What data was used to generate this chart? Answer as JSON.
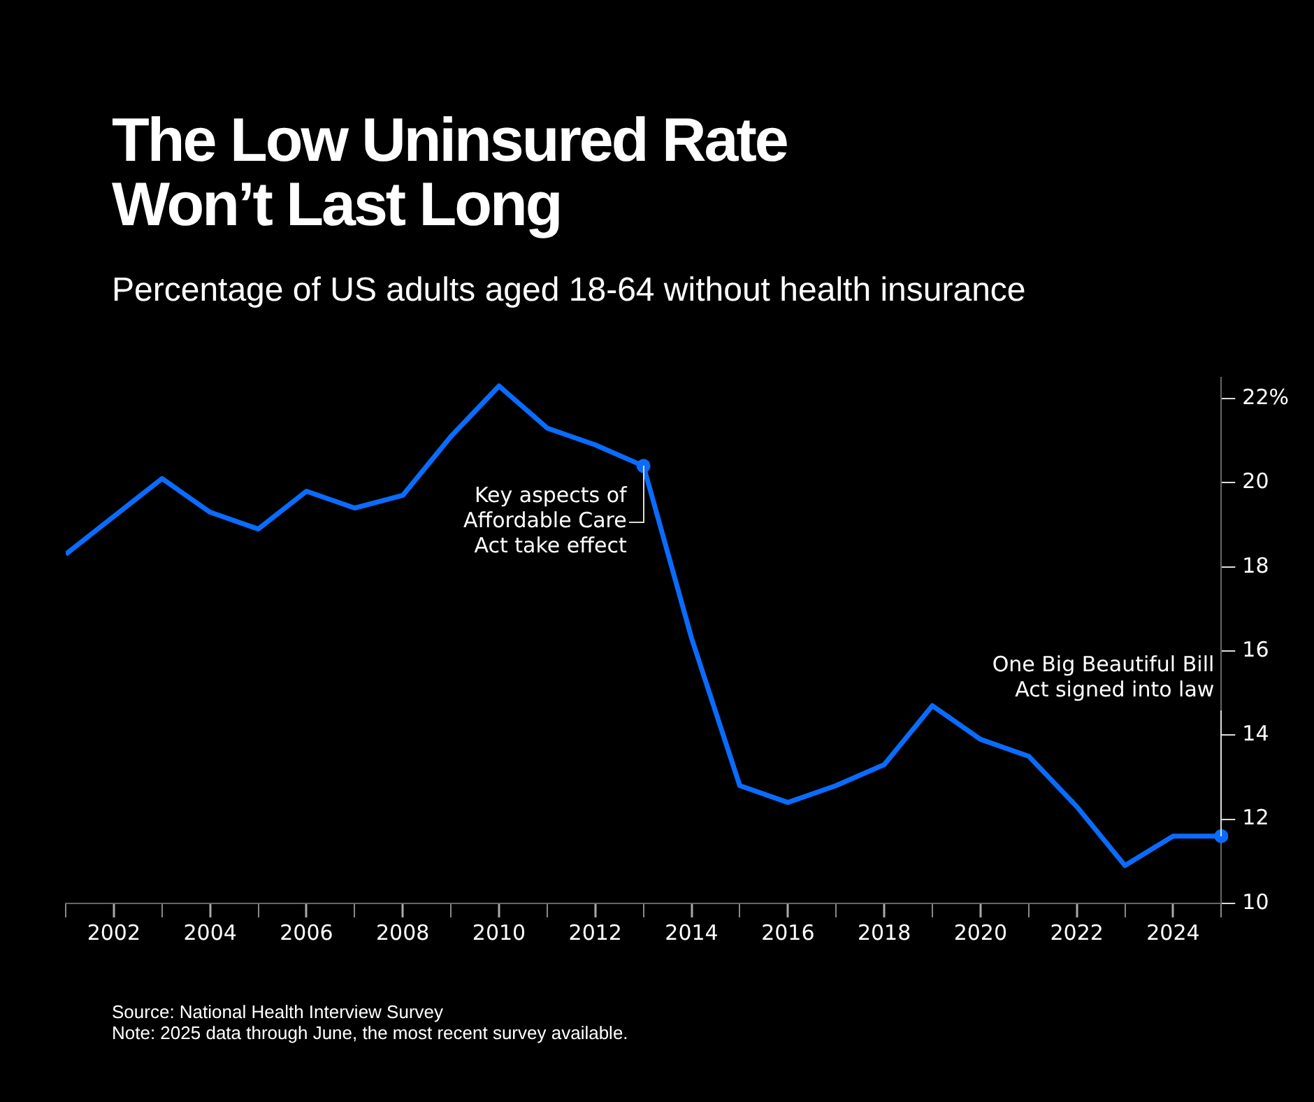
{
  "chart_data": {
    "type": "line",
    "title": "The Low Uninsured Rate\nWon’t Last Long",
    "subtitle": "Percentage of US adults aged 18-64 without health insurance",
    "x": [
      2001,
      2002,
      2003,
      2004,
      2005,
      2006,
      2007,
      2008,
      2009,
      2010,
      2011,
      2012,
      2013,
      2014,
      2015,
      2016,
      2017,
      2018,
      2019,
      2020,
      2021,
      2022,
      2023,
      2024,
      2025
    ],
    "series": [
      {
        "color": "#0a6cff",
        "values": [
          18.3,
          19.2,
          20.1,
          19.3,
          18.9,
          19.8,
          19.4,
          19.7,
          21.1,
          22.3,
          21.3,
          20.9,
          20.4,
          16.3,
          12.8,
          12.4,
          12.8,
          13.3,
          14.7,
          13.9,
          13.5,
          12.3,
          10.9,
          11.6,
          11.6
        ]
      }
    ],
    "xlim": [
      2001,
      2025
    ],
    "xticks": [
      {
        "value": 2001,
        "label": null
      },
      2002,
      {
        "value": 2003,
        "label": null
      },
      2004,
      {
        "value": 2005,
        "label": null
      },
      2006,
      {
        "value": 2007,
        "label": null
      },
      2008,
      {
        "value": 2009,
        "label": null
      },
      2010,
      {
        "value": 2011,
        "label": null
      },
      2012,
      {
        "value": 2013,
        "label": null
      },
      2014,
      {
        "value": 2015,
        "label": null
      },
      2016,
      {
        "value": 2017,
        "label": null
      },
      2018,
      {
        "value": 2019,
        "label": null
      },
      2020,
      {
        "value": 2021,
        "label": null
      },
      2022,
      {
        "value": 2023,
        "label": null
      },
      2024,
      {
        "value": 2025,
        "label": null
      }
    ],
    "ylim": [
      10,
      22.5
    ],
    "yticks": [
      10,
      12,
      14,
      16,
      18,
      20,
      {
        "value": 22,
        "label": "22%"
      }
    ],
    "grid": false,
    "legend": false,
    "marker": "none",
    "line_style": "solid",
    "annotations": [
      {
        "text": "Key aspects of\nAffordable Care\nAct take effect",
        "x": 2013,
        "y": 20.4
      },
      {
        "text": "One Big Beautiful Bill\nAct signed into law",
        "x": 2025,
        "y": 11.6
      },
      "Source: National Health Interview Survey",
      "Note: 2025 data through June, the most recent survey available."
    ]
  }
}
